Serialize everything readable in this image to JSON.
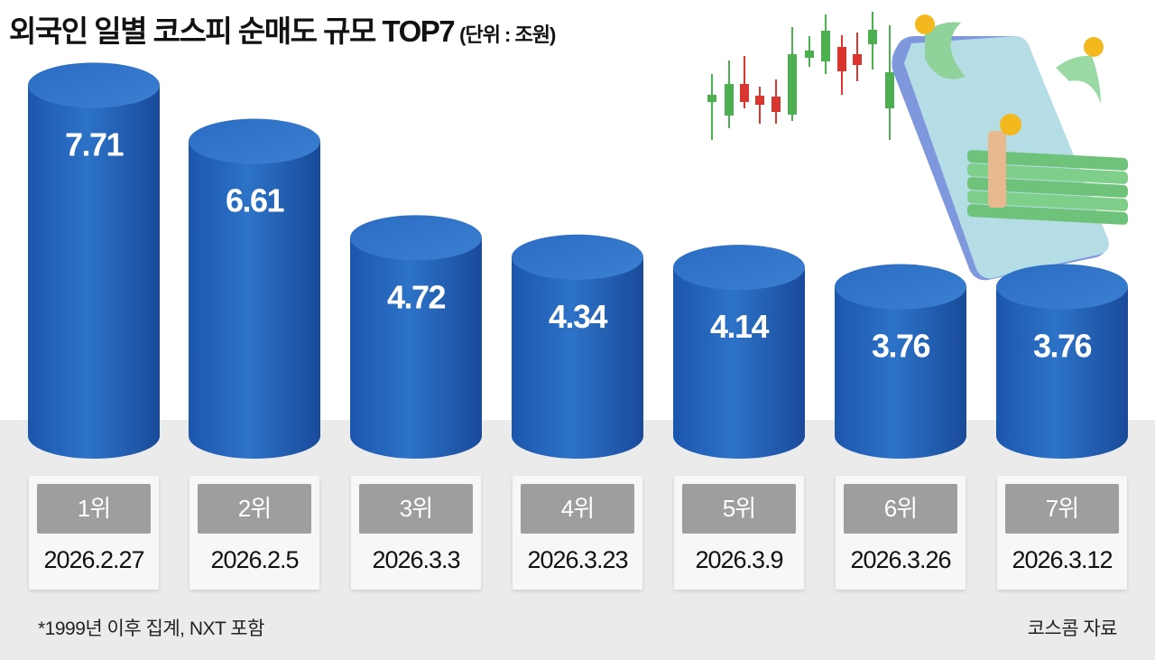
{
  "chart_data": {
    "type": "bar",
    "title": "외국인 일별 코스피 순매도 규모 TOP7",
    "unit": "(단위 : 조원)",
    "categories": [
      "2026.2.27",
      "2026.2.5",
      "2026.3.3",
      "2026.3.23",
      "2026.3.9",
      "2026.3.26",
      "2026.3.12"
    ],
    "ranks": [
      "1위",
      "2위",
      "3위",
      "4위",
      "5위",
      "6위",
      "7위"
    ],
    "values": [
      7.71,
      6.61,
      4.72,
      4.34,
      4.14,
      3.76,
      3.76
    ],
    "value_labels": [
      "7.71",
      "6.61",
      "4.72",
      "4.34",
      "4.14",
      "3.76",
      "3.76"
    ],
    "xlabel": "",
    "ylabel": "",
    "grid": false
  },
  "note": "*1999년 이후 집계, NXT 포함",
  "source": "코스콤 자료",
  "colors": {
    "bar": "#1f5fb3",
    "bar_light": "#3a7fd0",
    "bar_dark": "#1a4c9c",
    "badge": "#9e9e9e",
    "floor": "#ebebeb"
  }
}
